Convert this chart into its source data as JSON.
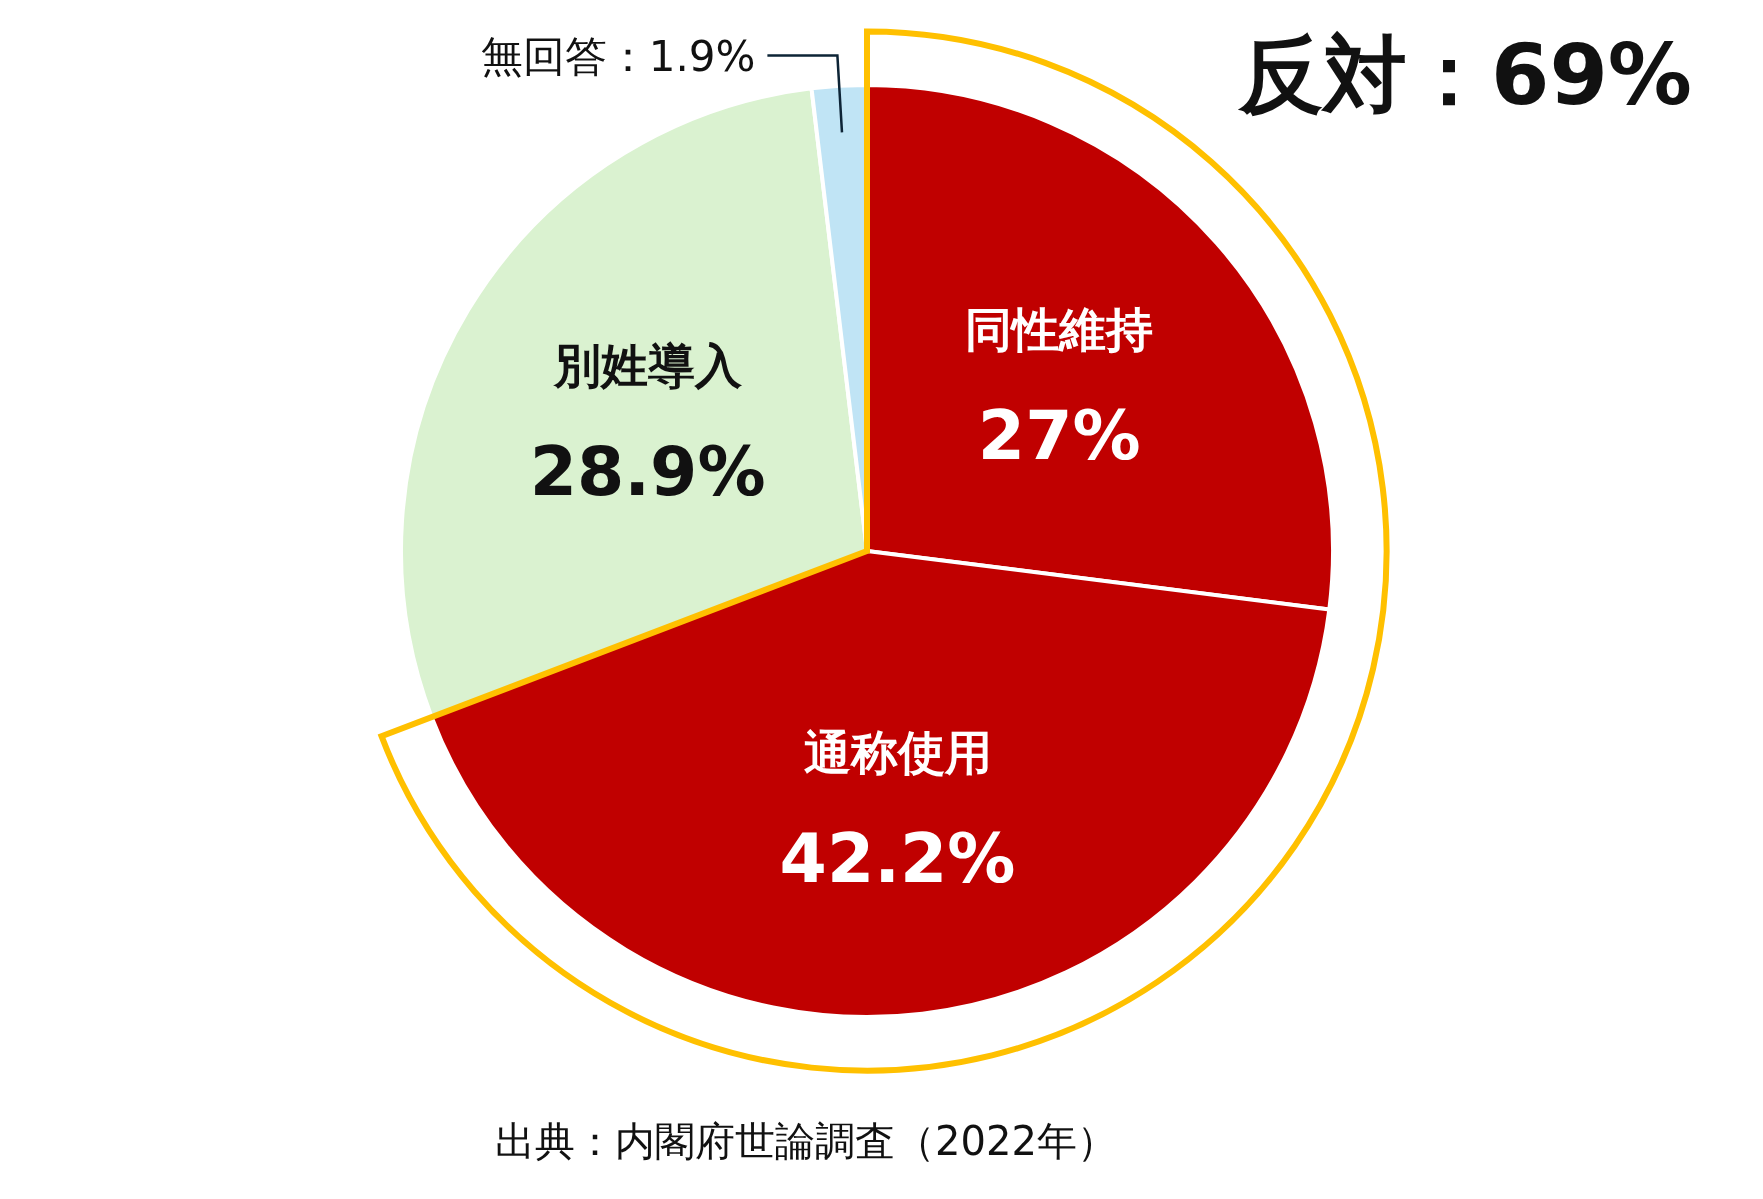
{
  "chart_data": {
    "type": "pie",
    "categories": [
      "同性維持",
      "通称使用",
      "別姓導入",
      "無回答"
    ],
    "values": [
      27,
      42.2,
      28.9,
      1.9
    ],
    "colors": [
      "#c00000",
      "#c00000",
      "#daf2d0",
      "#c0e4f5"
    ],
    "value_labels": [
      "27%",
      "42.2%",
      "28.9%",
      "：1.9%"
    ],
    "annotations": [
      "反対：69%",
      "出典：内閣府世論調査（2022年）"
    ]
  }
}
